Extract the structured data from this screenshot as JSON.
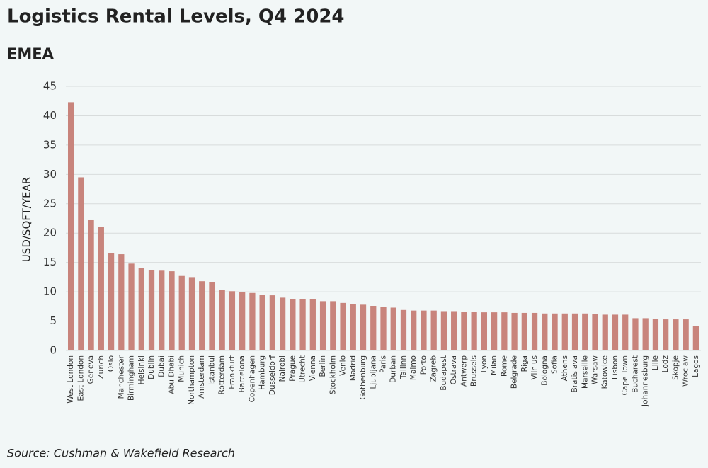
{
  "chart_data": {
    "type": "bar",
    "title": "Logistics Rental Levels, Q4 2024",
    "subtitle": "EMEA",
    "y_label": "USD/SQFT/YEAR",
    "source": "Source: Cushman & Wakefield Research",
    "categories": [
      "West London",
      "East London",
      "Geneva",
      "Zurich",
      "Oslo",
      "Manchester",
      "Birmingham",
      "Helsinki",
      "Dublin",
      "Dubai",
      "Abu Dhabi",
      "Munich",
      "Northampton",
      "Amsterdam",
      "Istanbul",
      "Rotterdam",
      "Frankfurt",
      "Barcelona",
      "Copenhagen",
      "Hamburg",
      "Dusseldorf",
      "Nairobi",
      "Prague",
      "Utrecht",
      "Vienna",
      "Berlin",
      "Stockholm",
      "Venlo",
      "Madrid",
      "Gothenburg",
      "Ljubljana",
      "Paris",
      "Durban",
      "Tallinn",
      "Malmo",
      "Porto",
      "Zagreb",
      "Budapest",
      "Ostrava",
      "Antwerp",
      "Brussels",
      "Lyon",
      "Milan",
      "Rome",
      "Belgrade",
      "Riga",
      "Vilnius",
      "Bologna",
      "Sofia",
      "Athens",
      "Bratislava",
      "Marseille",
      "Warsaw",
      "Katowice",
      "Lisbon",
      "Cape Town",
      "Bucharest",
      "Johannesburg",
      "Lille",
      "Lodz",
      "Skopje",
      "Wroclaw",
      "Lagos"
    ],
    "values": [
      42.3,
      29.5,
      22.2,
      21.1,
      16.6,
      16.4,
      14.8,
      14.1,
      13.7,
      13.6,
      13.5,
      12.7,
      12.5,
      11.8,
      11.7,
      10.3,
      10.1,
      10.0,
      9.8,
      9.5,
      9.4,
      9.0,
      8.8,
      8.8,
      8.8,
      8.4,
      8.4,
      8.1,
      7.9,
      7.8,
      7.6,
      7.4,
      7.3,
      6.9,
      6.8,
      6.8,
      6.8,
      6.7,
      6.7,
      6.6,
      6.6,
      6.5,
      6.5,
      6.5,
      6.4,
      6.4,
      6.4,
      6.3,
      6.3,
      6.3,
      6.3,
      6.3,
      6.2,
      6.1,
      6.1,
      6.1,
      5.5,
      5.5,
      5.4,
      5.3,
      5.3,
      5.3,
      4.2
    ],
    "color": "#c8847c",
    "ylim": [
      0,
      45
    ],
    "yticks": [
      0,
      5,
      10,
      15,
      20,
      25,
      30,
      35,
      40,
      45
    ],
    "grid": true
  }
}
